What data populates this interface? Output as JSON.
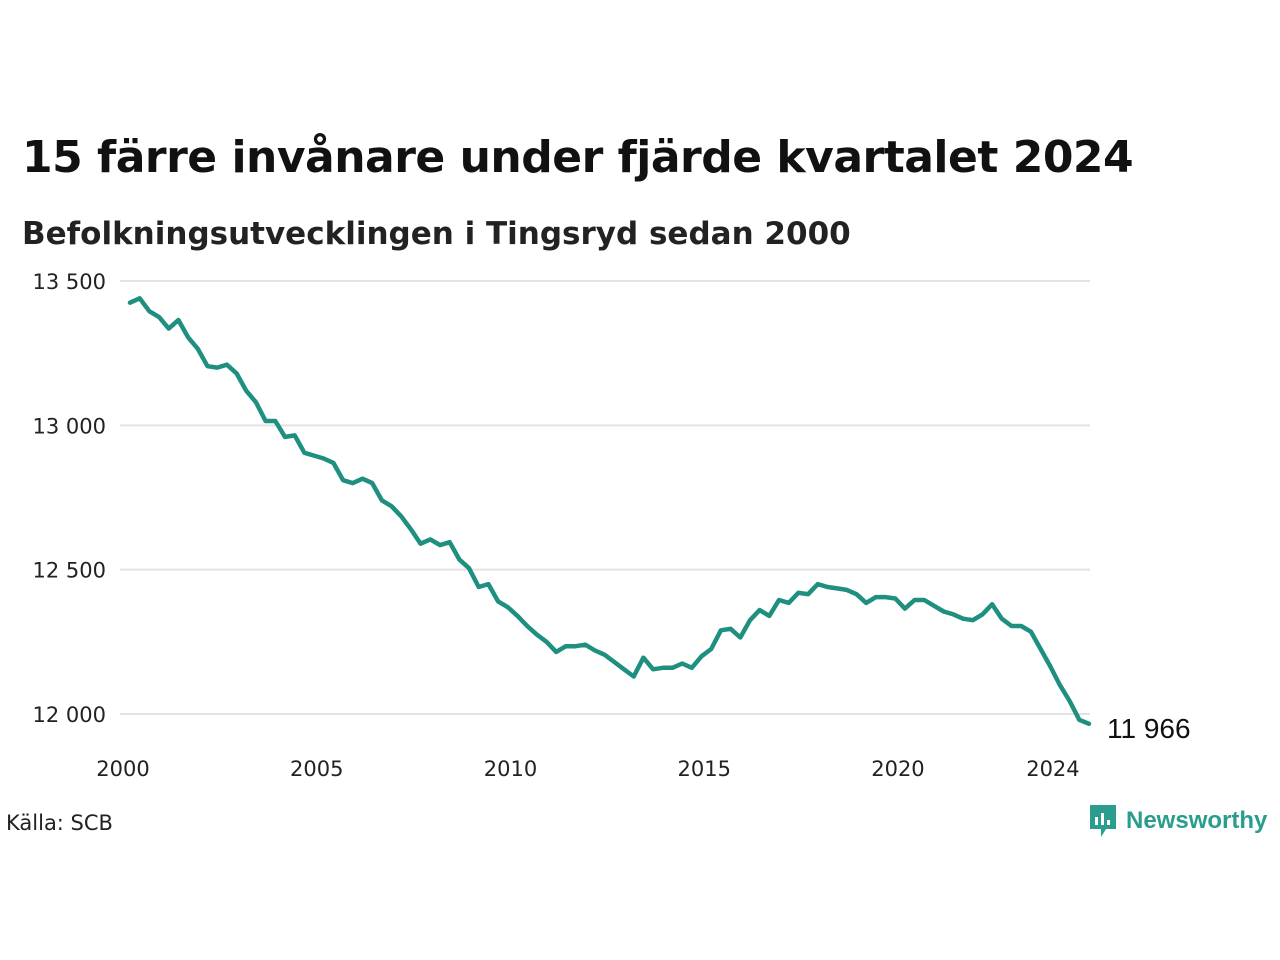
{
  "title": "15 färre invånare under fjärde kvartalet 2024",
  "subtitle": "Befolkningsutvecklingen i Tingsryd sedan 2000",
  "source": "Källa: SCB",
  "brand": {
    "name": "Newsworthy",
    "icon": "newsworthy-logo-icon",
    "color": "#2a9d8f"
  },
  "chart_data": {
    "type": "line",
    "title": "15 färre invånare under fjärde kvartalet 2024",
    "subtitle": "Befolkningsutvecklingen i Tingsryd sedan 2000",
    "xlabel": "",
    "ylabel": "",
    "ylim": [
      12000,
      13500
    ],
    "xlim": [
      2000,
      2024.75
    ],
    "grid": true,
    "line_color": "#1f8f80",
    "y_ticks": [
      {
        "value": 12000,
        "label": "12 000"
      },
      {
        "value": 12500,
        "label": "12 500"
      },
      {
        "value": 13000,
        "label": "13 000"
      },
      {
        "value": 13500,
        "label": "13 500"
      }
    ],
    "x_ticks": [
      {
        "value": 2000,
        "label": "2000"
      },
      {
        "value": 2005,
        "label": "2005"
      },
      {
        "value": 2010,
        "label": "2010"
      },
      {
        "value": 2015,
        "label": "2015"
      },
      {
        "value": 2020,
        "label": "2020"
      },
      {
        "value": 2024,
        "label": "2024"
      }
    ],
    "end_label": "11 966",
    "series": [
      {
        "x": [
          2000.0,
          2000.25,
          2000.5,
          2000.75,
          2001.0,
          2001.25,
          2001.5,
          2001.75,
          2002.0,
          2002.25,
          2002.5,
          2002.75,
          2003.0,
          2003.25,
          2003.5,
          2003.75,
          2004.0,
          2004.25,
          2004.5,
          2004.75,
          2005.0,
          2005.25,
          2005.5,
          2005.75,
          2006.0,
          2006.25,
          2006.5,
          2006.75,
          2007.0,
          2007.25,
          2007.5,
          2007.75,
          2008.0,
          2008.25,
          2008.5,
          2008.75,
          2009.0,
          2009.25,
          2009.5,
          2009.75,
          2010.0,
          2010.25,
          2010.5,
          2010.75,
          2011.0,
          2011.25,
          2011.5,
          2011.75,
          2012.0,
          2012.25,
          2012.5,
          2012.75,
          2013.0,
          2013.25,
          2013.5,
          2013.75,
          2014.0,
          2014.25,
          2014.5,
          2014.75,
          2015.0,
          2015.25,
          2015.5,
          2015.75,
          2016.0,
          2016.25,
          2016.5,
          2016.75,
          2017.0,
          2017.25,
          2017.5,
          2017.75,
          2018.0,
          2018.25,
          2018.5,
          2018.75,
          2019.0,
          2019.25,
          2019.5,
          2019.75,
          2020.0,
          2020.25,
          2020.5,
          2020.75,
          2021.0,
          2021.25,
          2021.5,
          2021.75,
          2022.0,
          2022.25,
          2022.5,
          2022.75,
          2023.0,
          2023.25,
          2023.5,
          2023.75,
          2024.0,
          2024.25,
          2024.5,
          2024.75
        ],
        "y": [
          13425,
          13440,
          13395,
          13375,
          13335,
          13365,
          13305,
          13265,
          13205,
          13200,
          13210,
          13180,
          13120,
          13080,
          13015,
          13015,
          12960,
          12965,
          12905,
          12895,
          12885,
          12870,
          12810,
          12800,
          12815,
          12800,
          12740,
          12720,
          12685,
          12640,
          12590,
          12605,
          12585,
          12595,
          12535,
          12505,
          12440,
          12450,
          12390,
          12370,
          12340,
          12305,
          12275,
          12250,
          12215,
          12235,
          12235,
          12240,
          12220,
          12205,
          12180,
          12155,
          12130,
          12195,
          12155,
          12160,
          12160,
          12175,
          12160,
          12200,
          12225,
          12290,
          12295,
          12265,
          12325,
          12360,
          12340,
          12395,
          12385,
          12420,
          12415,
          12450,
          12440,
          12435,
          12430,
          12415,
          12385,
          12405,
          12405,
          12400,
          12365,
          12395,
          12395,
          12375,
          12355,
          12345,
          12330,
          12325,
          12345,
          12380,
          12330,
          12305,
          12305,
          12285,
          12225,
          12165,
          12100,
          12045,
          11980,
          11966
        ]
      }
    ]
  }
}
